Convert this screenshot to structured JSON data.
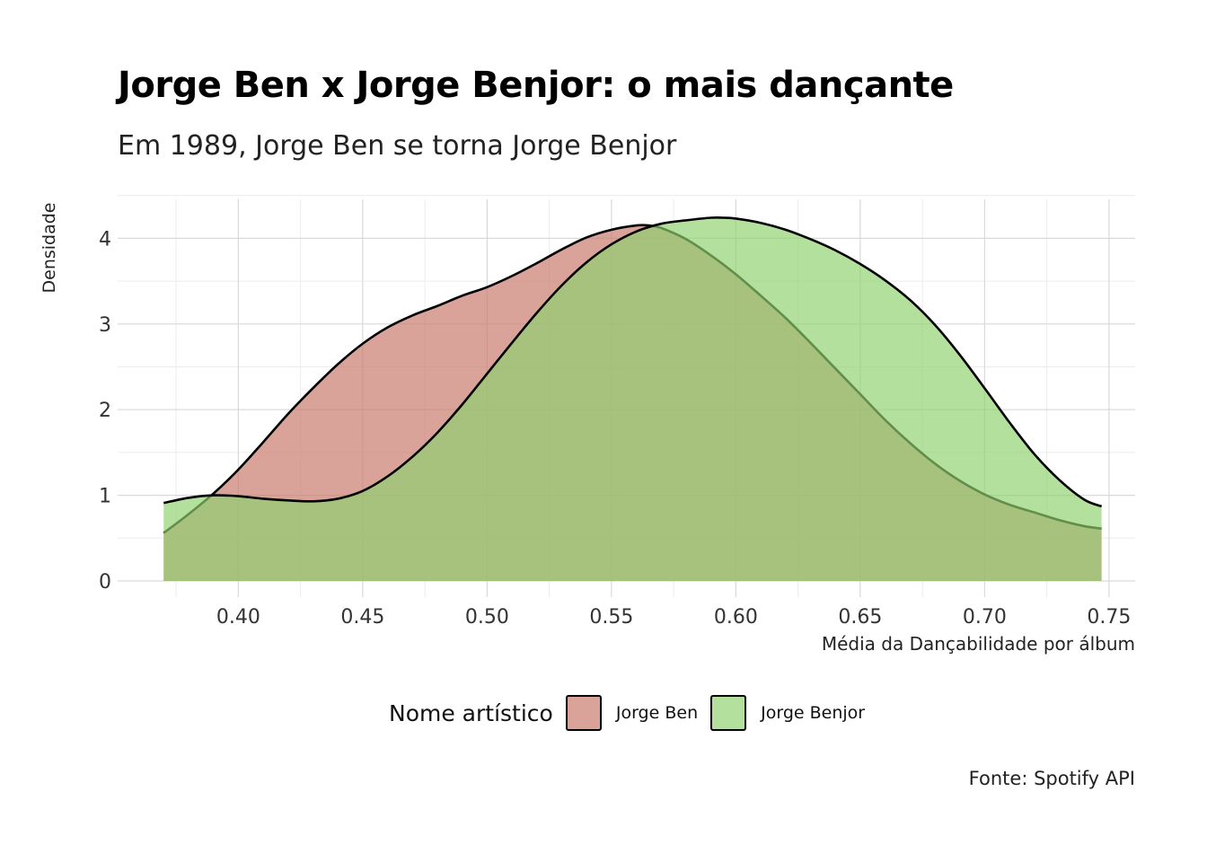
{
  "chart_data": {
    "type": "area",
    "title": "Jorge Ben x Jorge Benjor: o mais dançante",
    "subtitle": "Em 1989, Jorge Ben se torna Jorge Benjor",
    "xlabel": "Média da Dançabilidade por álbum",
    "ylabel": "Densidade",
    "caption": "Fonte: Spotify API",
    "xlim": [
      0.3515,
      0.7605
    ],
    "ylim": [
      0,
      4.5
    ],
    "x_ticks": [
      0.4,
      0.45,
      0.5,
      0.55,
      0.6,
      0.65,
      0.7,
      0.75
    ],
    "x_tick_labels": [
      "0.40",
      "0.45",
      "0.50",
      "0.55",
      "0.60",
      "0.65",
      "0.70",
      "0.75"
    ],
    "y_ticks": [
      0,
      1,
      2,
      3,
      4
    ],
    "y_tick_labels": [
      "0",
      "1",
      "2",
      "3",
      "4"
    ],
    "grid": true,
    "legend": {
      "title": "Nome artístico",
      "position": "bottom"
    },
    "series": [
      {
        "name": "Jorge Ben",
        "color": "#c9776a",
        "x": [
          0.37,
          0.38,
          0.39,
          0.4,
          0.41,
          0.42,
          0.43,
          0.44,
          0.45,
          0.46,
          0.47,
          0.48,
          0.49,
          0.5,
          0.51,
          0.52,
          0.53,
          0.54,
          0.55,
          0.56,
          0.565,
          0.57,
          0.58,
          0.59,
          0.6,
          0.61,
          0.62,
          0.63,
          0.64,
          0.65,
          0.66,
          0.67,
          0.68,
          0.69,
          0.7,
          0.71,
          0.72,
          0.73,
          0.74,
          0.747
        ],
        "values": [
          0.56,
          0.78,
          1.02,
          1.3,
          1.62,
          1.95,
          2.25,
          2.53,
          2.77,
          2.96,
          3.1,
          3.21,
          3.33,
          3.43,
          3.56,
          3.71,
          3.87,
          4.01,
          4.1,
          4.15,
          4.15,
          4.12,
          3.99,
          3.8,
          3.58,
          3.33,
          3.07,
          2.78,
          2.48,
          2.18,
          1.88,
          1.61,
          1.37,
          1.17,
          1.01,
          0.89,
          0.8,
          0.71,
          0.64,
          0.61
        ]
      },
      {
        "name": "Jorge Benjor",
        "color": "#8fd16f",
        "x": [
          0.37,
          0.38,
          0.39,
          0.4,
          0.41,
          0.42,
          0.43,
          0.44,
          0.45,
          0.46,
          0.47,
          0.48,
          0.49,
          0.5,
          0.51,
          0.52,
          0.53,
          0.54,
          0.55,
          0.56,
          0.57,
          0.58,
          0.59,
          0.595,
          0.6,
          0.61,
          0.62,
          0.63,
          0.64,
          0.65,
          0.66,
          0.67,
          0.68,
          0.69,
          0.7,
          0.71,
          0.72,
          0.73,
          0.74,
          0.747
        ],
        "values": [
          0.91,
          0.97,
          1.0,
          0.99,
          0.96,
          0.94,
          0.93,
          0.96,
          1.05,
          1.22,
          1.45,
          1.73,
          2.06,
          2.42,
          2.78,
          3.13,
          3.45,
          3.72,
          3.93,
          4.08,
          4.17,
          4.21,
          4.24,
          4.24,
          4.23,
          4.18,
          4.1,
          3.99,
          3.86,
          3.7,
          3.51,
          3.28,
          2.99,
          2.64,
          2.25,
          1.85,
          1.48,
          1.18,
          0.95,
          0.87
        ]
      }
    ]
  }
}
